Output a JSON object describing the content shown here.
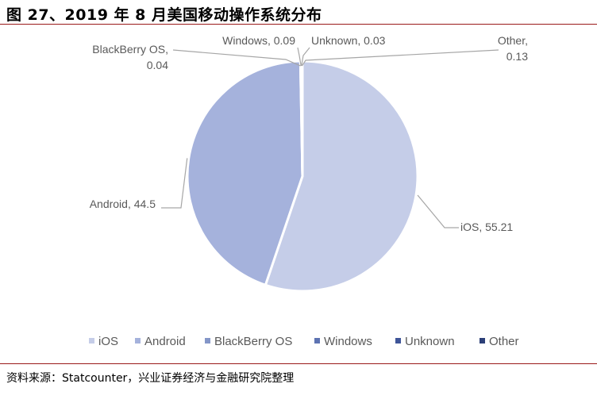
{
  "title": "图 27、2019 年 8 月美国移动操作系统分布",
  "source": "资料来源：Statcounter，兴业证券经济与金融研究院整理",
  "chart_data": {
    "type": "pie",
    "slices": [
      {
        "name": "iOS",
        "value": 55.21,
        "label_lines": [
          "iOS, 55.21"
        ],
        "color": "#c5cde8"
      },
      {
        "name": "Android",
        "value": 44.5,
        "label_lines": [
          "Android, 44.5"
        ],
        "color": "#a5b2dc"
      },
      {
        "name": "BlackBerry OS",
        "value": 0.04,
        "label_lines": [
          "BlackBerry OS,",
          "0.04"
        ],
        "color": "#8496c8"
      },
      {
        "name": "Windows",
        "value": 0.09,
        "label_lines": [
          "Windows, 0.09"
        ],
        "color": "#5d73b2"
      },
      {
        "name": "Unknown",
        "value": 0.03,
        "label_lines": [
          "Unknown, 0.03"
        ],
        "color": "#3f5598"
      },
      {
        "name": "Other",
        "value": 0.13,
        "label_lines": [
          "Other,",
          "0.13"
        ],
        "color": "#2c3f78"
      }
    ],
    "legend": [
      "iOS",
      "Android",
      "BlackBerry OS",
      "Windows",
      "Unknown",
      "Other"
    ],
    "legend_position": "bottom"
  }
}
